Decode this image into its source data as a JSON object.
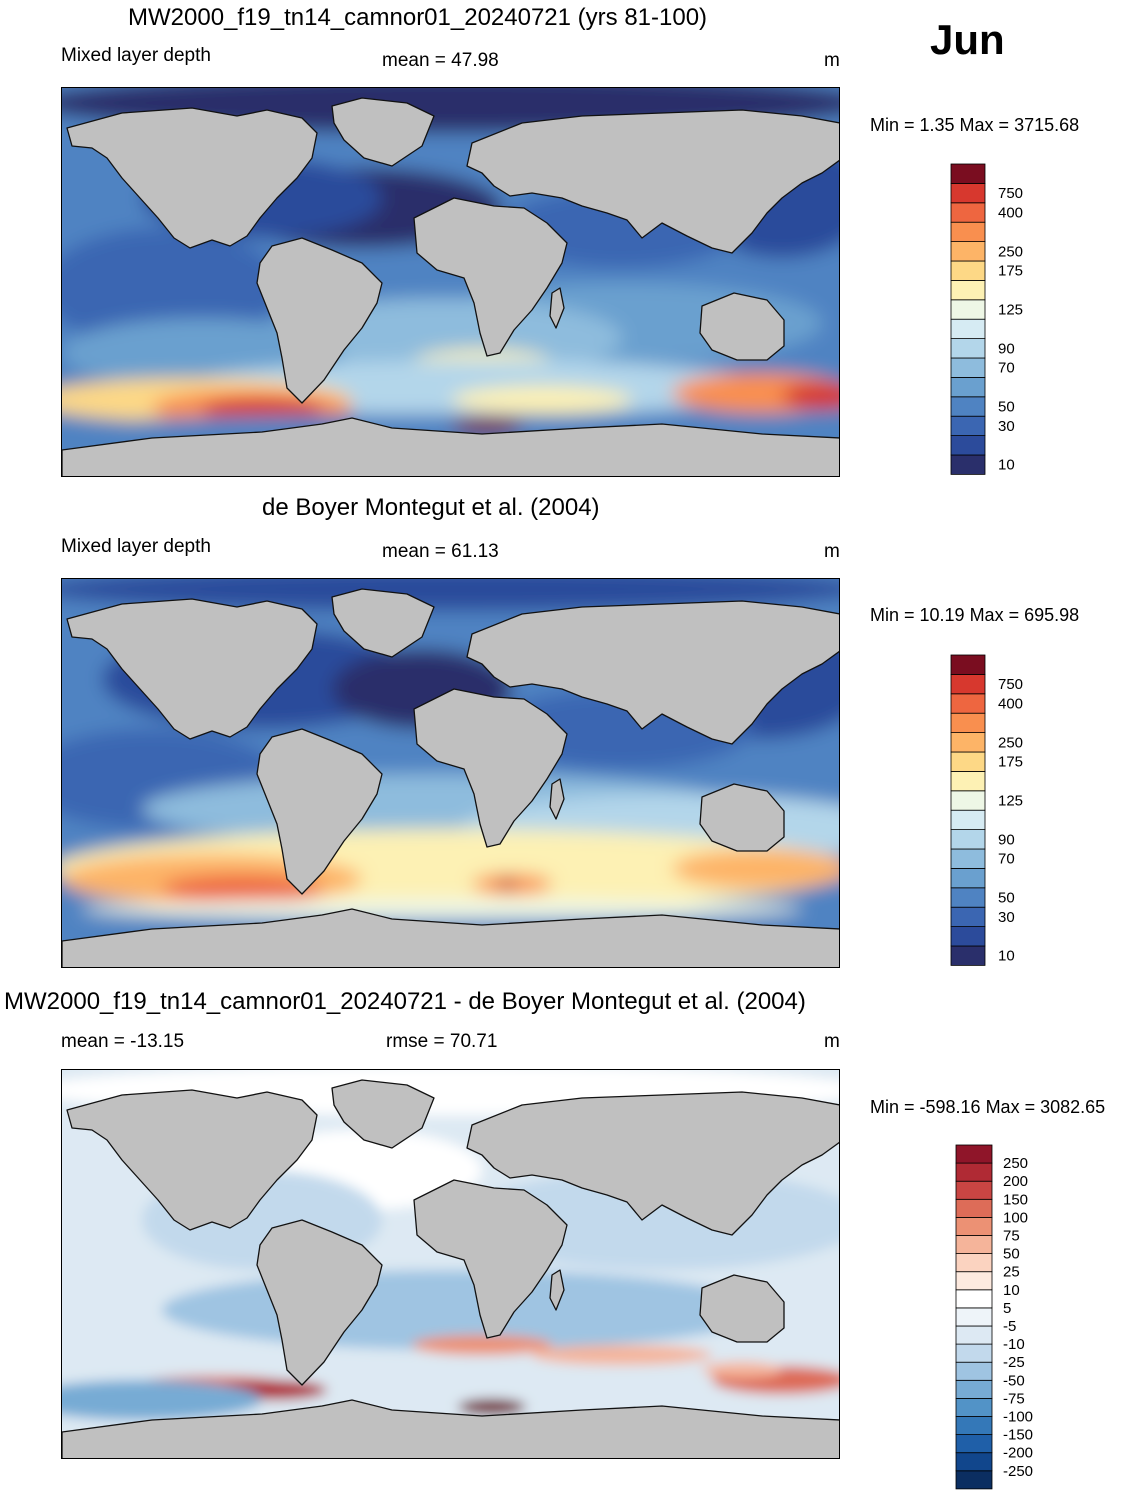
{
  "month": "Jun",
  "colors": {
    "land": "#c0c0c0",
    "coast": "#111111",
    "mld_scale": [
      "#2a2f6b",
      "#2c4b9b",
      "#3b66b2",
      "#4f83c2",
      "#6aa0cf",
      "#8ebcdd",
      "#b3d6ea",
      "#d6ebf3",
      "#eef7e6",
      "#fdf1b4",
      "#fdd886",
      "#fdb467",
      "#f98f4f",
      "#ee6640",
      "#d7382e",
      "#b11a27",
      "#7a0d20"
    ],
    "diff_scale": [
      "#0b2e61",
      "#11468c",
      "#1f5fa8",
      "#3478b8",
      "#5293c7",
      "#77abd4",
      "#9fc4e2",
      "#c2d9ec",
      "#dde9f3",
      "#eef4f9",
      "#ffffff",
      "#fdeadf",
      "#fbd3c0",
      "#f5b49a",
      "#ec9174",
      "#dd6c58",
      "#c94543",
      "#b02a34",
      "#8f1529",
      "#6e0a1f"
    ]
  },
  "panels": [
    {
      "title": "MW2000_f19_tn14_camnor01_20240721 (yrs 81-100)",
      "left_label": "Mixed layer depth",
      "center_label": "mean =  47.98",
      "units": "m",
      "minmax": "Min =   1.35 Max = 3715.68",
      "colorbar_labels": [
        "10",
        "30",
        "50",
        "70",
        "90",
        "125",
        "175",
        "250",
        "400",
        "750"
      ]
    },
    {
      "title": "de Boyer Montegut et al. (2004)",
      "left_label": "Mixed layer depth",
      "center_label": "mean =  61.13",
      "units": "m",
      "minmax": "Min =  10.19 Max = 695.98",
      "colorbar_labels": [
        "10",
        "30",
        "50",
        "70",
        "90",
        "125",
        "175",
        "250",
        "400",
        "750"
      ]
    },
    {
      "title": "MW2000_f19_tn14_camnor01_20240721 - de Boyer Montegut et al. (2004)",
      "left_label": "mean = -13.15",
      "center_label": "rmse =  70.71",
      "units": "m",
      "minmax": "Min = -598.16 Max = 3082.65",
      "colorbar_labels": [
        "-250",
        "-200",
        "-150",
        "-100",
        "-75",
        "-50",
        "-25",
        "-10",
        "-5",
        "5",
        "10",
        "25",
        "50",
        "75",
        "100",
        "150",
        "200",
        "250"
      ]
    }
  ]
}
